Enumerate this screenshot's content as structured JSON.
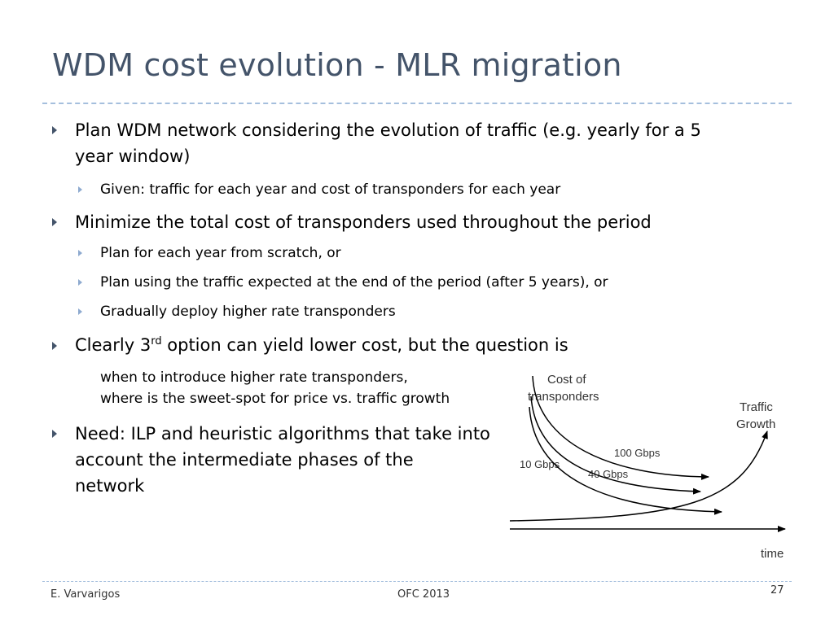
{
  "slide": {
    "title": "WDM cost evolution - MLR migration",
    "bullets": [
      {
        "text": "Plan WDM network considering the evolution of traffic (e.g. yearly for a 5",
        "text2": "year window)"
      },
      {
        "text": "Given: traffic for each year and cost of transponders for each year"
      },
      {
        "text": "Minimize the total cost of transponders used throughout the period"
      },
      {
        "text": "Plan for each year from scratch, or"
      },
      {
        "text": "Plan using the traffic expected at the end of the period (after 5 years), or"
      },
      {
        "text": "Gradually deploy higher rate transponders"
      },
      {
        "pre": "Clearly 3",
        "sup": "rd",
        "post": " option can yield lower cost, but the question is"
      },
      {
        "text": "when to introduce higher rate transponders,",
        "text2": "where is the sweet-spot for price vs. traffic growth"
      },
      {
        "text": "Need: ILP and heuristic algorithms that take into",
        "text2": "account the intermediate phases of the",
        "text3": "network"
      }
    ]
  },
  "diagram": {
    "cost_label_1": "Cost of",
    "cost_label_2": "transponders",
    "traffic_label_1": "Traffic",
    "traffic_label_2": "Growth",
    "label_100": "100 Gbps",
    "label_40": "40 Gbps",
    "label_10": "10 Gbps",
    "time_label": "time",
    "line_color": "#000000"
  },
  "footer": {
    "author": "E. Varvarigos",
    "conference": "OFC 2013",
    "page": "27"
  }
}
